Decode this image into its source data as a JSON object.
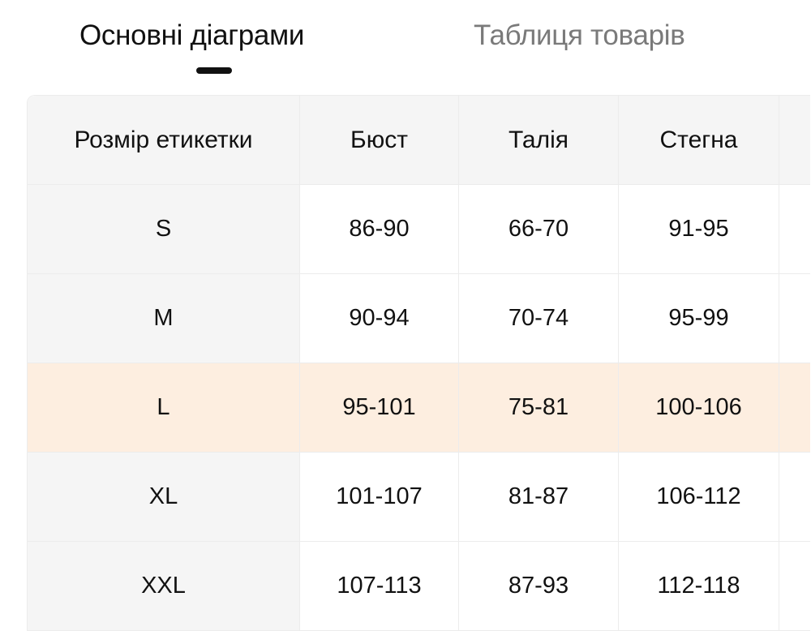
{
  "tabs": [
    {
      "label": "Основні діаграми",
      "active": true
    },
    {
      "label": "Таблиця товарів",
      "active": false
    }
  ],
  "table": {
    "headers": [
      "Розмір етикетки",
      "Бюст",
      "Талія",
      "Стегна",
      ""
    ],
    "rows": [
      [
        "S",
        "86-90",
        "66-70",
        "91-95",
        ""
      ],
      [
        "M",
        "90-94",
        "70-74",
        "95-99",
        ""
      ],
      [
        "L",
        "95-101",
        "75-81",
        "100-106",
        ""
      ],
      [
        "XL",
        "101-107",
        "81-87",
        "106-112",
        ""
      ],
      [
        "XXL",
        "107-113",
        "87-93",
        "112-118",
        ""
      ]
    ],
    "highlighted_row": "L",
    "highlight_color": "#fdeee0"
  }
}
